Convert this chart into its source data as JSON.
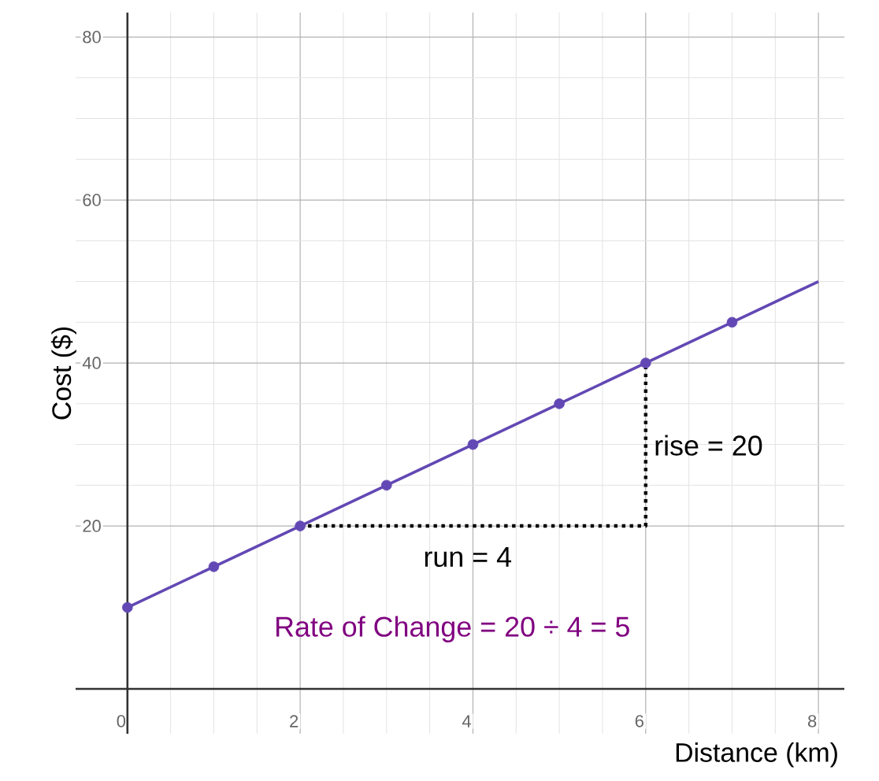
{
  "chart_data": {
    "type": "line",
    "xlabel": "Distance (km)",
    "ylabel": "Cost ($)",
    "series": [
      {
        "color": "#6248b4",
        "marker": "none",
        "x": [
          0,
          1,
          2,
          3,
          4,
          5,
          6,
          7,
          8
        ],
        "values": [
          10,
          15,
          20,
          25,
          30,
          35,
          40,
          45,
          50
        ]
      },
      {
        "type": "scatter",
        "color": "#6248b4",
        "marker": "circle",
        "x": [
          0,
          1,
          2,
          3,
          4,
          5,
          6,
          7
        ],
        "values": [
          10,
          15,
          20,
          25,
          30,
          35,
          40,
          45
        ]
      },
      {
        "color": "#000000",
        "marker": "none",
        "line_style": "dotted",
        "x": [
          2,
          6,
          6
        ],
        "values": [
          20,
          20,
          40
        ]
      }
    ],
    "xlim": [
      -0.6,
      8.3
    ],
    "ylim": [
      -5.5,
      83
    ],
    "xticks": [
      0,
      2,
      4,
      6,
      8
    ],
    "yticks": [
      20,
      40,
      60,
      80
    ],
    "grid": true,
    "annotations": [
      "rise = 20",
      "run = 4",
      "Rate of Change = 20 ÷ 4 = 5"
    ]
  }
}
